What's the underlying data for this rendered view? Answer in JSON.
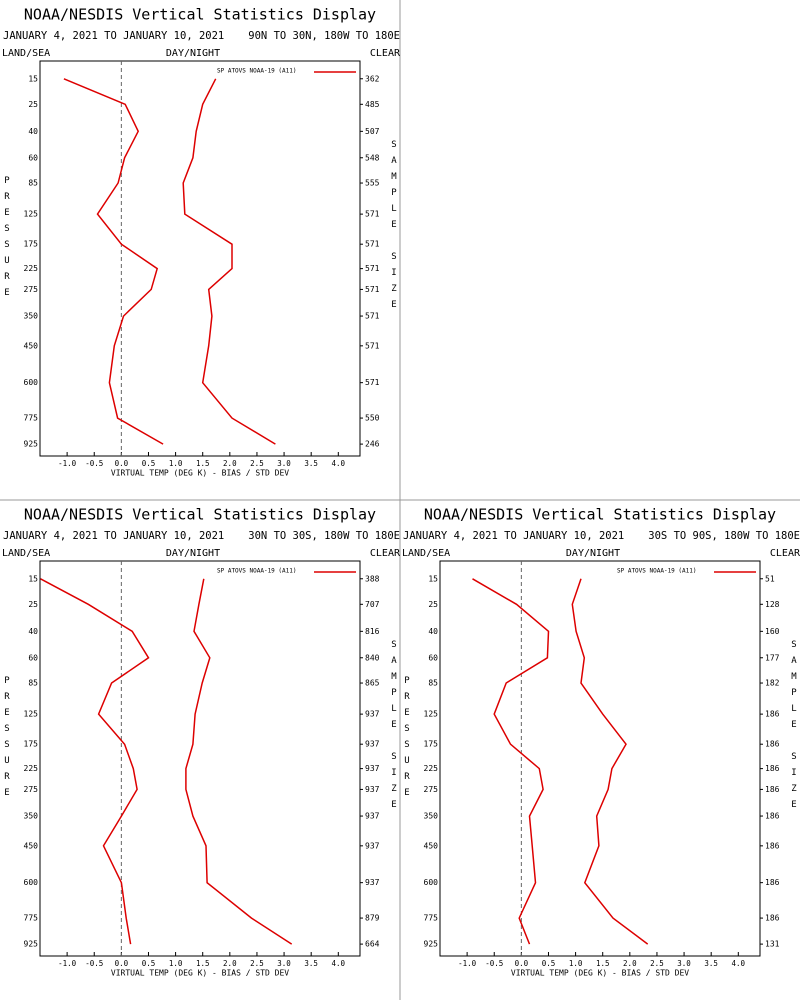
{
  "chart_data": [
    {
      "type": "line",
      "title": "NOAA/NESDIS Vertical Statistics Display",
      "date_range": "JANUARY 4, 2021 TO JANUARY 10, 2021",
      "region": "90N TO 30N, 180W TO 180E",
      "land_sea": "LAND/SEA",
      "day_night": "DAY/NIGHT",
      "clear": "CLEAR",
      "ylabel": "PRESSURE",
      "y2label": "SAMPLE SIZE",
      "xlabel": "VIRTUAL TEMP (DEG K) - BIAS / STD DEV",
      "legend": "SP ATOVS NOAA-19 (A11)",
      "categories": [
        15,
        25,
        40,
        60,
        85,
        125,
        175,
        225,
        275,
        350,
        450,
        600,
        775,
        925
      ],
      "ylim": [
        10,
        1000
      ],
      "sample_sizes": [
        362,
        485,
        507,
        548,
        555,
        571,
        571,
        571,
        571,
        571,
        571,
        571,
        550,
        246
      ],
      "xlim": [
        -1.5,
        4.4
      ],
      "xticks": [
        {
          "value": -1,
          "label": "-1.0"
        },
        -0.5,
        {
          "value": 0,
          "label": "0.0"
        },
        0.5,
        {
          "value": 1,
          "label": "1.0"
        },
        1.5,
        {
          "value": 2,
          "label": "2.0"
        },
        2.5,
        {
          "value": 3,
          "label": "3.0"
        },
        3.5,
        {
          "value": 4,
          "label": "4.0"
        }
      ],
      "series": [
        {
          "color": "#dd0000",
          "values": [
            -1.06,
            0.07,
            0.31,
            0.06,
            -0.06,
            -0.44,
            0.0,
            0.66,
            0.55,
            0.04,
            -0.13,
            -0.22,
            -0.07,
            0.77
          ]
        },
        {
          "color": "#dd0000",
          "values": [
            1.74,
            1.5,
            1.38,
            1.32,
            1.14,
            1.17,
            2.04,
            2.04,
            1.61,
            1.67,
            1.61,
            1.5,
            2.04,
            2.84
          ]
        }
      ]
    },
    {
      "type": "line",
      "title": "NOAA/NESDIS Vertical Statistics Display",
      "date_range": "JANUARY 4, 2021 TO JANUARY 10, 2021",
      "region": "30N TO 30S, 180W TO 180E",
      "land_sea": "LAND/SEA",
      "day_night": "DAY/NIGHT",
      "clear": "CLEAR",
      "ylabel": "PRESSURE",
      "y2label": "SAMPLE SIZE",
      "xlabel": "VIRTUAL TEMP (DEG K) - BIAS / STD DEV",
      "legend": "SP ATOVS NOAA-19 (A11)",
      "categories": [
        15,
        25,
        40,
        60,
        85,
        125,
        175,
        225,
        275,
        350,
        450,
        600,
        775,
        925
      ],
      "ylim": [
        10,
        1000
      ],
      "sample_sizes": [
        388,
        707,
        816,
        840,
        865,
        937,
        937,
        937,
        937,
        937,
        937,
        937,
        879,
        664
      ],
      "xlim": [
        -1.5,
        4.4
      ],
      "xticks": [
        {
          "value": -1,
          "label": "-1.0"
        },
        -0.5,
        {
          "value": 0,
          "label": "0.0"
        },
        0.5,
        {
          "value": 1,
          "label": "1.0"
        },
        1.5,
        {
          "value": 2,
          "label": "2.0"
        },
        2.5,
        {
          "value": 3,
          "label": "3.0"
        },
        3.5,
        {
          "value": 4,
          "label": "4.0"
        }
      ],
      "series": [
        {
          "color": "#dd0000",
          "values": [
            -1.49,
            -0.61,
            0.2,
            0.5,
            -0.18,
            -0.42,
            0.06,
            0.22,
            0.29,
            0.0,
            -0.33,
            0.0,
            0.09,
            0.17
          ]
        },
        {
          "color": "#dd0000",
          "values": [
            1.52,
            1.43,
            1.34,
            1.63,
            1.49,
            1.36,
            1.32,
            1.19,
            1.19,
            1.32,
            1.56,
            1.58,
            2.4,
            3.14
          ]
        }
      ]
    },
    {
      "type": "line",
      "title": "NOAA/NESDIS Vertical Statistics Display",
      "date_range": "JANUARY 4, 2021 TO JANUARY 10, 2021",
      "region": "30S TO 90S, 180W TO 180E",
      "land_sea": "LAND/SEA",
      "day_night": "DAY/NIGHT",
      "clear": "CLEAR",
      "ylabel": "PRESSURE",
      "y2label": "SAMPLE SIZE",
      "xlabel": "VIRTUAL TEMP (DEG K) - BIAS / STD DEV",
      "legend": "SP ATOVS NOAA-19 (A11)",
      "categories": [
        15,
        25,
        40,
        60,
        85,
        125,
        175,
        225,
        275,
        350,
        450,
        600,
        775,
        925
      ],
      "ylim": [
        10,
        1000
      ],
      "sample_sizes": [
        51,
        128,
        160,
        177,
        182,
        186,
        186,
        186,
        186,
        186,
        186,
        186,
        186,
        131
      ],
      "xlim": [
        -1.5,
        4.4
      ],
      "xticks": [
        {
          "value": -1,
          "label": "-1.0"
        },
        -0.5,
        {
          "value": 0,
          "label": "0.0"
        },
        0.5,
        {
          "value": 1,
          "label": "1.0"
        },
        1.5,
        {
          "value": 2,
          "label": "2.0"
        },
        2.5,
        {
          "value": 3,
          "label": "3.0"
        },
        3.5,
        {
          "value": 4,
          "label": "4.0"
        }
      ],
      "series": [
        {
          "color": "#dd0000",
          "values": [
            -0.9,
            -0.09,
            0.5,
            0.48,
            -0.28,
            -0.5,
            -0.2,
            0.33,
            0.4,
            0.15,
            0.2,
            0.26,
            -0.04,
            0.15
          ]
        },
        {
          "color": "#dd0000",
          "values": [
            1.1,
            0.94,
            1.01,
            1.16,
            1.1,
            1.5,
            1.93,
            1.67,
            1.6,
            1.39,
            1.43,
            1.17,
            1.69,
            2.33
          ]
        }
      ]
    }
  ]
}
